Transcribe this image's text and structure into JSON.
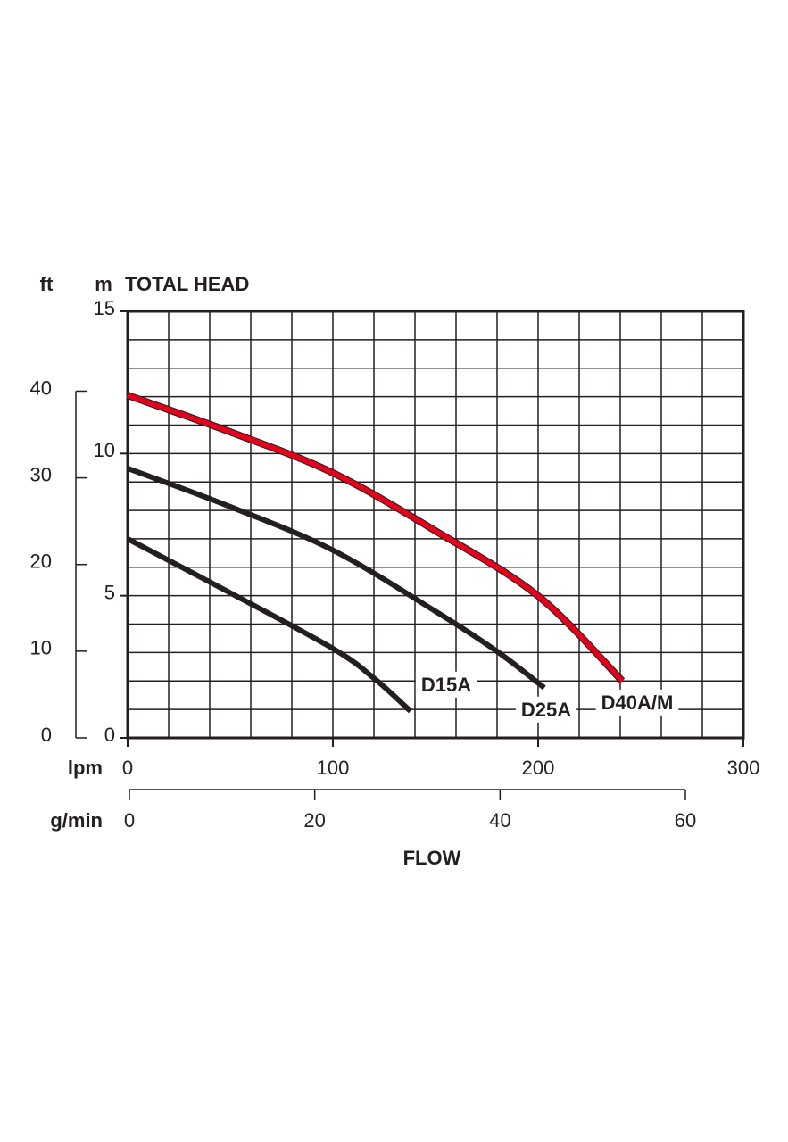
{
  "chart_data": {
    "type": "line",
    "y_label": "TOTAL HEAD",
    "y_unit": "m",
    "y2_unit": "ft",
    "x_label": "FLOW",
    "x_unit": "lpm",
    "x2_unit": "g/min",
    "xlim": [
      0,
      300
    ],
    "xticks": [
      0,
      100,
      200,
      300
    ],
    "x2lim": [
      0,
      60
    ],
    "x2ticks": [
      0,
      20,
      40,
      60
    ],
    "ylim": [
      0,
      15
    ],
    "yticks": [
      0,
      5,
      10,
      15
    ],
    "y2lim": [
      0,
      49.21
    ],
    "y2ticks": [
      0,
      10,
      20,
      30,
      40
    ],
    "grid": true,
    "grid_x_step": 20,
    "grid_y_step": 1,
    "series": [
      {
        "name": "D15A",
        "color": "#231f20",
        "x": [
          0,
          50,
          100,
          120,
          137.8
        ],
        "values": [
          7.0,
          5.1,
          3.14,
          2.1,
          0.94
        ]
      },
      {
        "name": "D25A",
        "color": "#231f20",
        "x": [
          0,
          50,
          100,
          150,
          180,
          203
        ],
        "values": [
          9.48,
          8.13,
          6.6,
          4.45,
          3.04,
          1.76
        ]
      },
      {
        "name": "D40A/M",
        "color": "#e2001a",
        "x": [
          0,
          50,
          100,
          150,
          200,
          241
        ],
        "values": [
          12.05,
          10.76,
          9.32,
          7.28,
          4.99,
          2.0
        ]
      }
    ]
  }
}
